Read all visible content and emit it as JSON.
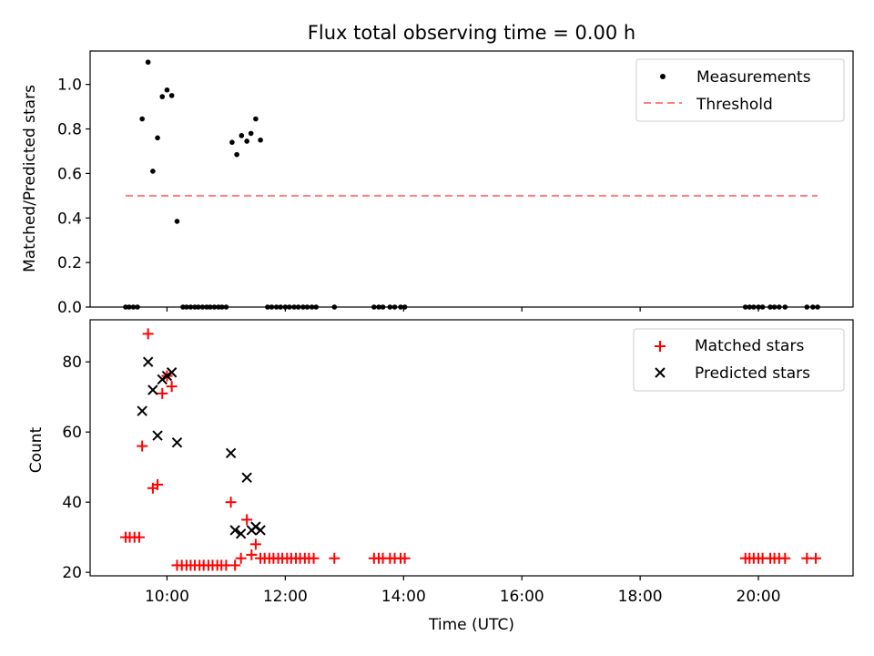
{
  "chart_data": [
    {
      "type": "scatter",
      "title": "Flux total observing time = 0.00 h",
      "xlabel": "",
      "ylabel": "Matched/Predicted stars",
      "xlim": [
        8.7,
        21.6
      ],
      "ylim": [
        0.0,
        1.15
      ],
      "yticks": [
        0.0,
        0.2,
        0.4,
        0.6,
        0.8,
        1.0
      ],
      "ytick_labels": [
        "0.0",
        "0.2",
        "0.4",
        "0.6",
        "0.8",
        "1.0"
      ],
      "xticks": [
        10,
        12,
        14,
        16,
        18,
        20
      ],
      "legend": "top-right",
      "series": [
        {
          "name": "Measurements",
          "marker": "dot",
          "color": "#000000",
          "x": [
            9.3,
            9.36,
            9.43,
            9.5,
            9.58,
            9.68,
            9.76,
            9.84,
            9.92,
            10.0,
            10.08,
            10.17,
            10.27,
            10.33,
            10.4,
            10.47,
            10.53,
            10.6,
            10.67,
            10.73,
            10.8,
            10.87,
            10.93,
            11.0,
            11.1,
            11.18,
            11.26,
            11.35,
            11.42,
            11.5,
            11.58,
            11.7,
            11.77,
            11.85,
            11.92,
            12.0,
            12.07,
            12.15,
            12.22,
            12.3,
            12.37,
            12.45,
            12.52,
            12.83,
            13.5,
            13.58,
            13.65,
            13.77,
            13.85,
            13.95,
            14.02,
            19.78,
            19.85,
            19.92,
            20.0,
            20.07,
            20.2,
            20.27,
            20.35,
            20.45,
            20.82,
            20.92,
            21.0
          ],
          "y": [
            0,
            0,
            0,
            0,
            0.845,
            1.1,
            0.61,
            0.76,
            0.945,
            0.975,
            0.95,
            0.385,
            0,
            0,
            0,
            0,
            0,
            0,
            0,
            0,
            0,
            0,
            0,
            0,
            0.74,
            0.685,
            0.77,
            0.745,
            0.78,
            0.845,
            0.75,
            0,
            0,
            0,
            0,
            0,
            0,
            0,
            0,
            0,
            0,
            0,
            0,
            0,
            0,
            0,
            0,
            0,
            0,
            0,
            0,
            0,
            0,
            0,
            0,
            0,
            0,
            0,
            0,
            0,
            0,
            0,
            0
          ]
        },
        {
          "name": "Threshold",
          "style": "dashed",
          "color": "#ff7f7f",
          "x": [
            9.3,
            21.0
          ],
          "y": [
            0.5,
            0.5
          ]
        }
      ]
    },
    {
      "type": "scatter",
      "title": "",
      "xlabel": "Time (UTC)",
      "ylabel": "Count",
      "xlim": [
        8.7,
        21.6
      ],
      "ylim": [
        19,
        92
      ],
      "yticks": [
        20,
        40,
        60,
        80
      ],
      "ytick_labels": [
        "20",
        "40",
        "60",
        "80"
      ],
      "xticks": [
        10,
        12,
        14,
        16,
        18,
        20
      ],
      "xtick_labels": [
        "10:00",
        "12:00",
        "14:00",
        "16:00",
        "18:00",
        "20:00"
      ],
      "legend": "top-right",
      "series": [
        {
          "name": "Matched stars",
          "marker": "plus",
          "color": "#ff0000",
          "x": [
            9.3,
            9.37,
            9.45,
            9.53,
            9.58,
            9.68,
            9.76,
            9.84,
            9.92,
            10.0,
            10.08,
            10.17,
            10.25,
            10.33,
            10.4,
            10.47,
            10.55,
            10.62,
            10.7,
            10.77,
            10.85,
            10.92,
            11.0,
            11.08,
            11.15,
            11.25,
            11.35,
            11.43,
            11.5,
            11.58,
            11.65,
            11.73,
            11.8,
            11.88,
            11.95,
            12.03,
            12.1,
            12.18,
            12.25,
            12.33,
            12.4,
            12.48,
            12.83,
            13.5,
            13.58,
            13.65,
            13.77,
            13.85,
            13.95,
            14.02,
            19.78,
            19.85,
            19.92,
            20.0,
            20.07,
            20.2,
            20.27,
            20.35,
            20.45,
            20.82,
            20.97
          ],
          "y": [
            30,
            30,
            30,
            30,
            56,
            88,
            44,
            45,
            71,
            76,
            73,
            22,
            22,
            22,
            22,
            22,
            22,
            22,
            22,
            22,
            22,
            22,
            22,
            40,
            22,
            24,
            35,
            25,
            28,
            24,
            24,
            24,
            24,
            24,
            24,
            24,
            24,
            24,
            24,
            24,
            24,
            24,
            24,
            24,
            24,
            24,
            24,
            24,
            24,
            24,
            24,
            24,
            24,
            24,
            24,
            24,
            24,
            24,
            24,
            24,
            24
          ]
        },
        {
          "name": "Predicted stars",
          "marker": "x",
          "color": "#000000",
          "x": [
            9.58,
            9.68,
            9.76,
            9.84,
            9.92,
            10.0,
            10.08,
            10.17,
            11.08,
            11.15,
            11.25,
            11.35,
            11.43,
            11.5,
            11.58
          ],
          "y": [
            66,
            80,
            72,
            59,
            75,
            76,
            77,
            57,
            54,
            32,
            31,
            47,
            32,
            33,
            32
          ]
        }
      ]
    }
  ]
}
